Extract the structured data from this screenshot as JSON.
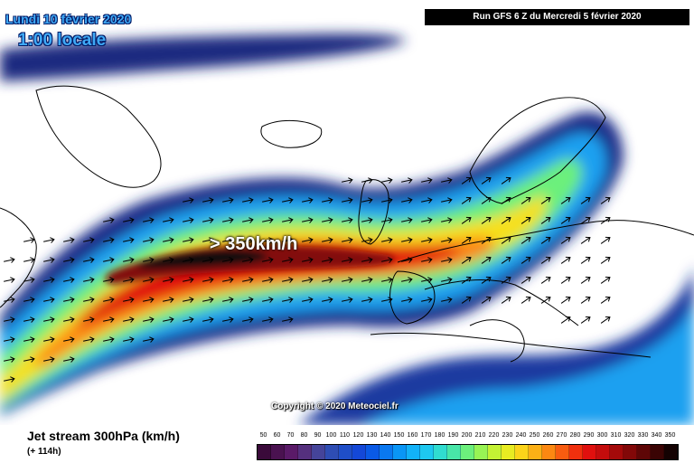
{
  "header": {
    "date": "Lundi 10 février 2020",
    "time": "1:00 locale",
    "run_info": "Run GFS 6 Z du Mercredi 5 février 2020"
  },
  "map": {
    "annotation": "> 350km/h",
    "copyright": "Copyright © 2020 Meteociel.fr"
  },
  "footer": {
    "title": "Jet stream 300hPa (km/h)",
    "subtitle": "(+ 114h)"
  },
  "legend": {
    "labels": [
      "50",
      "60",
      "70",
      "80",
      "90",
      "100",
      "110",
      "120",
      "130",
      "140",
      "150",
      "160",
      "170",
      "180",
      "190",
      "200",
      "210",
      "220",
      "230",
      "240",
      "250",
      "260",
      "270",
      "280",
      "290",
      "300",
      "310",
      "320",
      "330",
      "340",
      "350"
    ],
    "colors": [
      "#3a0a3a",
      "#4a1250",
      "#5a1a68",
      "#55307e",
      "#45449a",
      "#2e4db4",
      "#1f4ec8",
      "#1448d8",
      "#0a5ae6",
      "#0a78f0",
      "#0a96f6",
      "#12b2f8",
      "#1ec8f0",
      "#30dcd0",
      "#48e6a8",
      "#6cf07c",
      "#98f454",
      "#c4f234",
      "#e8ec22",
      "#fcd41a",
      "#fcb016",
      "#fc8812",
      "#f85c10",
      "#f0300e",
      "#e0100e",
      "#c40c0c",
      "#a40a0a",
      "#820808",
      "#5e0606",
      "#3a0404",
      "#140202"
    ]
  }
}
